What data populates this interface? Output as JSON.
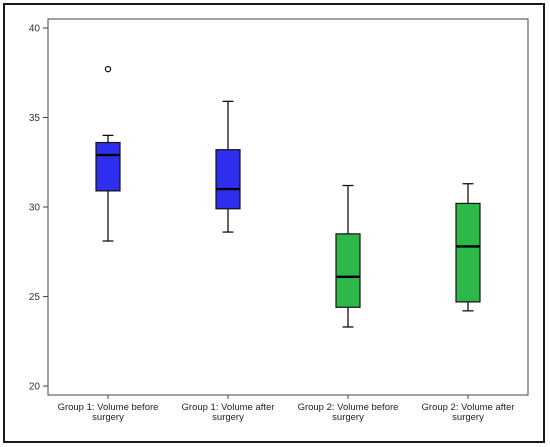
{
  "chart_data": {
    "type": "boxplot",
    "title": "",
    "xlabel": "",
    "ylabel": "",
    "ylim": [
      19.5,
      40.5
    ],
    "yticks": [
      20,
      25,
      30,
      35,
      40
    ],
    "ytick_labels": [
      "20",
      "25",
      "30",
      "35",
      "40"
    ],
    "grid": false,
    "categories": [
      [
        "Group 1: Volume before",
        "surgery"
      ],
      [
        "Group 1: Volume after",
        "surgery"
      ],
      [
        "Group 2: Volume before",
        "surgery"
      ],
      [
        "Group 2: Volume after",
        "surgery"
      ]
    ],
    "boxes": [
      {
        "whisker_low": 28.1,
        "q1": 30.9,
        "median": 32.9,
        "q3": 33.6,
        "whisker_high": 34.0,
        "outliers": [
          37.7
        ],
        "color": "#2f2ff0"
      },
      {
        "whisker_low": 28.6,
        "q1": 29.9,
        "median": 31.0,
        "q3": 33.2,
        "whisker_high": 35.9,
        "outliers": [],
        "color": "#2f2ff0"
      },
      {
        "whisker_low": 23.3,
        "q1": 24.4,
        "median": 26.1,
        "q3": 28.5,
        "whisker_high": 31.2,
        "outliers": [],
        "color": "#2db84a"
      },
      {
        "whisker_low": 24.2,
        "q1": 24.7,
        "median": 27.8,
        "q3": 30.2,
        "whisker_high": 31.3,
        "outliers": [],
        "color": "#2db84a"
      }
    ]
  }
}
